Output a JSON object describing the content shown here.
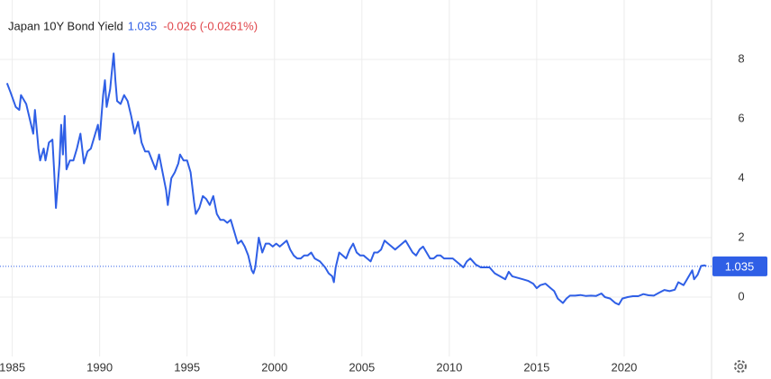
{
  "chart_data": {
    "type": "line",
    "title": "Japan 10Y Bond Yield",
    "last_value": 1.035,
    "change_text": "-0.026 (-0.0261%)",
    "xlim": [
      1984.3,
      2025.0
    ],
    "ylim": [
      -2,
      10
    ],
    "xticks": [
      1985,
      1990,
      1995,
      2000,
      2005,
      2010,
      2015,
      2020
    ],
    "yticks": [
      0,
      2,
      4,
      6,
      8
    ],
    "grid": true,
    "series": [
      {
        "color": "#2f5fe6",
        "x": [
          1984.7,
          1984.9,
          1985.2,
          1985.4,
          1985.5,
          1985.8,
          1986.0,
          1986.2,
          1986.3,
          1986.5,
          1986.6,
          1986.8,
          1986.9,
          1987.1,
          1987.3,
          1987.4,
          1987.5,
          1987.7,
          1987.8,
          1987.9,
          1988.0,
          1988.1,
          1988.3,
          1988.5,
          1988.7,
          1988.9,
          1989.1,
          1989.3,
          1989.5,
          1989.7,
          1989.9,
          1990.0,
          1990.2,
          1990.3,
          1990.4,
          1990.6,
          1990.7,
          1990.8,
          1990.9,
          1991.0,
          1991.2,
          1991.4,
          1991.6,
          1991.8,
          1992.0,
          1992.2,
          1992.4,
          1992.6,
          1992.8,
          1993.0,
          1993.2,
          1993.4,
          1993.6,
          1993.8,
          1993.9,
          1994.1,
          1994.3,
          1994.5,
          1994.6,
          1994.8,
          1995.0,
          1995.2,
          1995.4,
          1995.5,
          1995.7,
          1995.9,
          1996.1,
          1996.3,
          1996.5,
          1996.7,
          1996.9,
          1997.1,
          1997.3,
          1997.5,
          1997.7,
          1997.9,
          1998.1,
          1998.3,
          1998.5,
          1998.7,
          1998.8,
          1998.9,
          1999.1,
          1999.3,
          1999.5,
          1999.7,
          1999.9,
          2000.1,
          2000.3,
          2000.5,
          2000.7,
          2000.9,
          2001.1,
          2001.3,
          2001.5,
          2001.7,
          2001.9,
          2002.1,
          2002.3,
          2002.6,
          2002.9,
          2003.1,
          2003.3,
          2003.4,
          2003.5,
          2003.7,
          2003.9,
          2004.1,
          2004.3,
          2004.5,
          2004.7,
          2004.9,
          2005.1,
          2005.3,
          2005.5,
          2005.7,
          2005.9,
          2006.1,
          2006.3,
          2006.5,
          2006.7,
          2006.9,
          2007.1,
          2007.3,
          2007.5,
          2007.7,
          2007.9,
          2008.1,
          2008.3,
          2008.5,
          2008.7,
          2008.9,
          2009.1,
          2009.3,
          2009.5,
          2009.7,
          2009.9,
          2010.2,
          2010.4,
          2010.6,
          2010.8,
          2011.0,
          2011.2,
          2011.5,
          2011.8,
          2012.0,
          2012.3,
          2012.6,
          2012.9,
          2013.2,
          2013.4,
          2013.6,
          2013.9,
          2014.2,
          2014.5,
          2014.8,
          2015.0,
          2015.2,
          2015.5,
          2015.8,
          2016.0,
          2016.2,
          2016.5,
          2016.7,
          2016.9,
          2017.2,
          2017.5,
          2017.8,
          2018.1,
          2018.4,
          2018.7,
          2018.9,
          2019.2,
          2019.5,
          2019.7,
          2019.9,
          2020.2,
          2020.5,
          2020.8,
          2021.1,
          2021.4,
          2021.7,
          2022.0,
          2022.3,
          2022.6,
          2022.9,
          2023.1,
          2023.4,
          2023.6,
          2023.9,
          2024.0,
          2024.2,
          2024.4,
          2024.6,
          2024.7
        ],
        "values": [
          7.2,
          6.9,
          6.4,
          6.3,
          6.8,
          6.5,
          6.0,
          5.5,
          6.3,
          5.0,
          4.6,
          5.0,
          4.6,
          5.2,
          5.3,
          4.2,
          3.0,
          4.5,
          5.8,
          4.8,
          6.1,
          4.3,
          4.6,
          4.6,
          5.0,
          5.5,
          4.5,
          4.9,
          5.0,
          5.4,
          5.8,
          5.3,
          6.8,
          7.3,
          6.4,
          7.0,
          7.6,
          8.2,
          7.3,
          6.6,
          6.5,
          6.8,
          6.6,
          6.1,
          5.5,
          5.9,
          5.2,
          4.9,
          4.9,
          4.6,
          4.3,
          4.8,
          4.2,
          3.6,
          3.1,
          4.0,
          4.2,
          4.5,
          4.8,
          4.6,
          4.6,
          4.2,
          3.2,
          2.8,
          3.0,
          3.4,
          3.3,
          3.1,
          3.4,
          2.8,
          2.6,
          2.6,
          2.5,
          2.6,
          2.2,
          1.8,
          1.9,
          1.7,
          1.4,
          0.9,
          0.8,
          1.0,
          2.0,
          1.5,
          1.8,
          1.8,
          1.7,
          1.8,
          1.7,
          1.8,
          1.9,
          1.6,
          1.4,
          1.3,
          1.3,
          1.4,
          1.4,
          1.5,
          1.3,
          1.2,
          1.0,
          0.8,
          0.7,
          0.5,
          1.0,
          1.5,
          1.4,
          1.3,
          1.6,
          1.8,
          1.5,
          1.4,
          1.4,
          1.3,
          1.2,
          1.5,
          1.5,
          1.6,
          1.9,
          1.8,
          1.7,
          1.6,
          1.7,
          1.8,
          1.9,
          1.7,
          1.5,
          1.4,
          1.6,
          1.7,
          1.5,
          1.3,
          1.3,
          1.4,
          1.4,
          1.3,
          1.3,
          1.3,
          1.2,
          1.1,
          1.0,
          1.2,
          1.3,
          1.1,
          1.0,
          1.0,
          1.0,
          0.8,
          0.7,
          0.6,
          0.85,
          0.7,
          0.65,
          0.6,
          0.55,
          0.45,
          0.3,
          0.4,
          0.45,
          0.3,
          0.2,
          -0.05,
          -0.2,
          -0.05,
          0.05,
          0.05,
          0.07,
          0.04,
          0.05,
          0.04,
          0.12,
          0.0,
          -0.05,
          -0.2,
          -0.25,
          -0.05,
          0.0,
          0.03,
          0.03,
          0.1,
          0.06,
          0.05,
          0.15,
          0.24,
          0.2,
          0.25,
          0.5,
          0.4,
          0.6,
          0.9,
          0.6,
          0.75,
          1.05,
          1.07,
          1.035
        ]
      }
    ]
  }
}
